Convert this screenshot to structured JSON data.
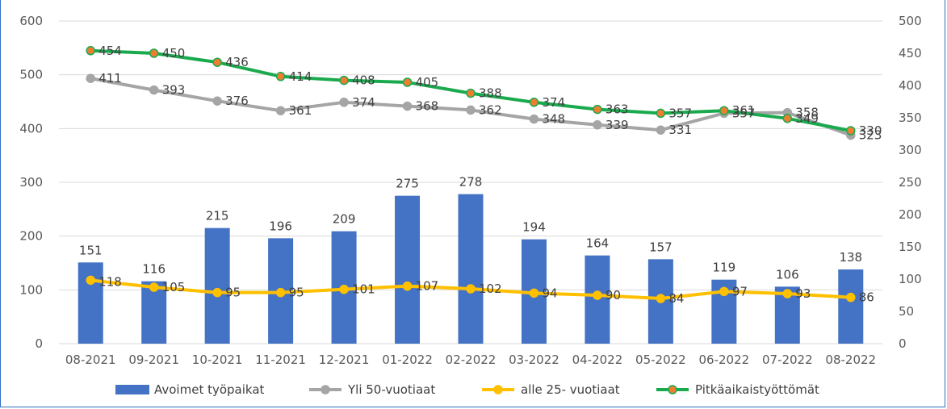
{
  "chart_data": {
    "type": "bar",
    "categories": [
      "08-2021",
      "09-2021",
      "10-2021",
      "11-2021",
      "12-2021",
      "01-2022",
      "02-2022",
      "03-2022",
      "04-2022",
      "05-2022",
      "06-2022",
      "07-2022",
      "08-2022"
    ],
    "y_left": {
      "min": 0,
      "max": 600,
      "ticks": [
        "0",
        "100",
        "200",
        "300",
        "400",
        "500",
        "600"
      ]
    },
    "y_right": {
      "min": 0,
      "max": 500,
      "ticks": [
        "0",
        "50",
        "100",
        "150",
        "200",
        "250",
        "300",
        "350",
        "400",
        "450",
        "500"
      ]
    },
    "grid": true,
    "legend_position": "bottom",
    "series": [
      {
        "name": "Avoimet työpaikat",
        "type": "bar",
        "axis": "left",
        "color": "#4472c4",
        "values": [
          151,
          116,
          215,
          196,
          209,
          275,
          278,
          194,
          164,
          157,
          119,
          106,
          138
        ]
      },
      {
        "name": "Yli 50-vuotiaat",
        "type": "line",
        "axis": "right",
        "color": "#a5a5a5",
        "marker": "#a5a5a5",
        "values": [
          411,
          393,
          376,
          361,
          374,
          368,
          362,
          348,
          339,
          331,
          357,
          358,
          323
        ]
      },
      {
        "name": "alle 25- vuotiaat",
        "type": "line",
        "axis": "left",
        "color": "#ffc000",
        "marker": "#ffc000",
        "values": [
          118,
          105,
          95,
          95,
          101,
          107,
          102,
          94,
          90,
          84,
          97,
          93,
          86
        ]
      },
      {
        "name": "Pitkäaikaistyöttömät",
        "type": "line",
        "axis": "right",
        "color": "#1aaa4e",
        "marker": "#ed7d31",
        "values": [
          454,
          450,
          436,
          414,
          408,
          405,
          388,
          374,
          363,
          357,
          361,
          349,
          330
        ]
      }
    ],
    "label_texts": {
      "alle 25- vuotiaat": [
        "118",
        "105",
        "95",
        "95",
        "101",
        "107",
        "102",
        "94",
        "90",
        "84",
        "97",
        "93",
        "86"
      ]
    }
  }
}
